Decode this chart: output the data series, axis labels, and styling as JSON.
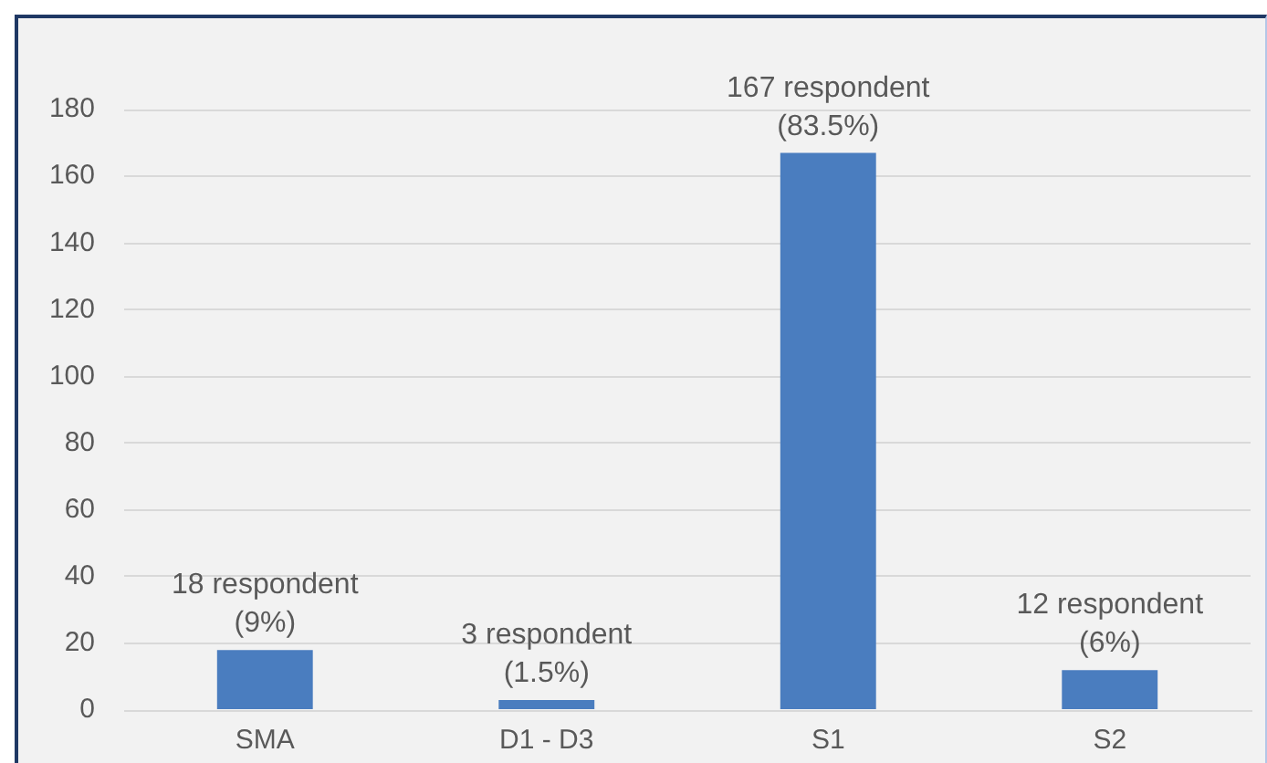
{
  "chart_data": {
    "type": "bar",
    "categories": [
      "SMA",
      "D1 - D3",
      "S1",
      "S2"
    ],
    "values": [
      18,
      3,
      167,
      12
    ],
    "color": "#4a7dbf",
    "value_labels": [
      "18 respondent\n(9%)",
      "3 respondent\n(1.5%)",
      "167 respondent\n(83.5%)",
      "12 respondent\n(6%)"
    ],
    "ylim": [
      0,
      180
    ],
    "yticks": [
      0,
      20,
      40,
      60,
      80,
      100,
      120,
      140,
      160,
      180
    ],
    "grid": "y"
  }
}
